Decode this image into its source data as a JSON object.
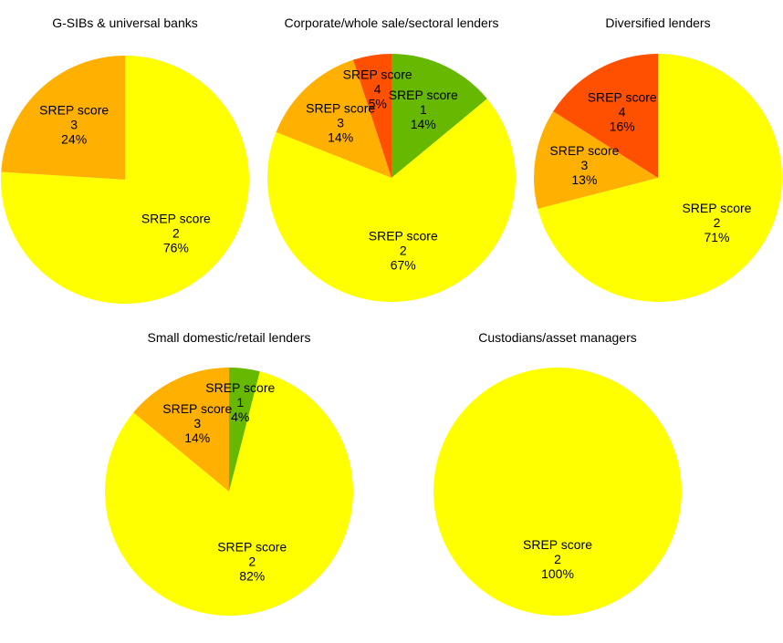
{
  "chart_data": [
    {
      "type": "pie",
      "title": "G-SIBs & universal banks",
      "label_prefix": "SREP score",
      "slices": [
        {
          "label": "2",
          "value": 76,
          "color": "#FFFF00"
        },
        {
          "label": "3",
          "value": 24,
          "color": "#FFB000"
        }
      ]
    },
    {
      "type": "pie",
      "title": "Corporate/whole sale/sectoral lenders",
      "label_prefix": "SREP score",
      "slices": [
        {
          "label": "1",
          "value": 14,
          "color": "#66B800"
        },
        {
          "label": "2",
          "value": 67,
          "color": "#FFFF00"
        },
        {
          "label": "3",
          "value": 14,
          "color": "#FFB000"
        },
        {
          "label": "4",
          "value": 5,
          "color": "#FF5000"
        }
      ]
    },
    {
      "type": "pie",
      "title": "Diversified lenders",
      "label_prefix": "SREP score",
      "slices": [
        {
          "label": "2",
          "value": 71,
          "color": "#FFFF00"
        },
        {
          "label": "3",
          "value": 13,
          "color": "#FFB000"
        },
        {
          "label": "4",
          "value": 16,
          "color": "#FF5000"
        }
      ]
    },
    {
      "type": "pie",
      "title": "Small domestic/retail lenders",
      "label_prefix": "SREP score",
      "slices": [
        {
          "label": "1",
          "value": 4,
          "color": "#66B800"
        },
        {
          "label": "2",
          "value": 82,
          "color": "#FFFF00"
        },
        {
          "label": "3",
          "value": 14,
          "color": "#FFB000"
        }
      ]
    },
    {
      "type": "pie",
      "title": "Custodians/asset managers",
      "label_prefix": "SREP score",
      "slices": [
        {
          "label": "2",
          "value": 100,
          "color": "#FFFF00"
        }
      ]
    }
  ]
}
